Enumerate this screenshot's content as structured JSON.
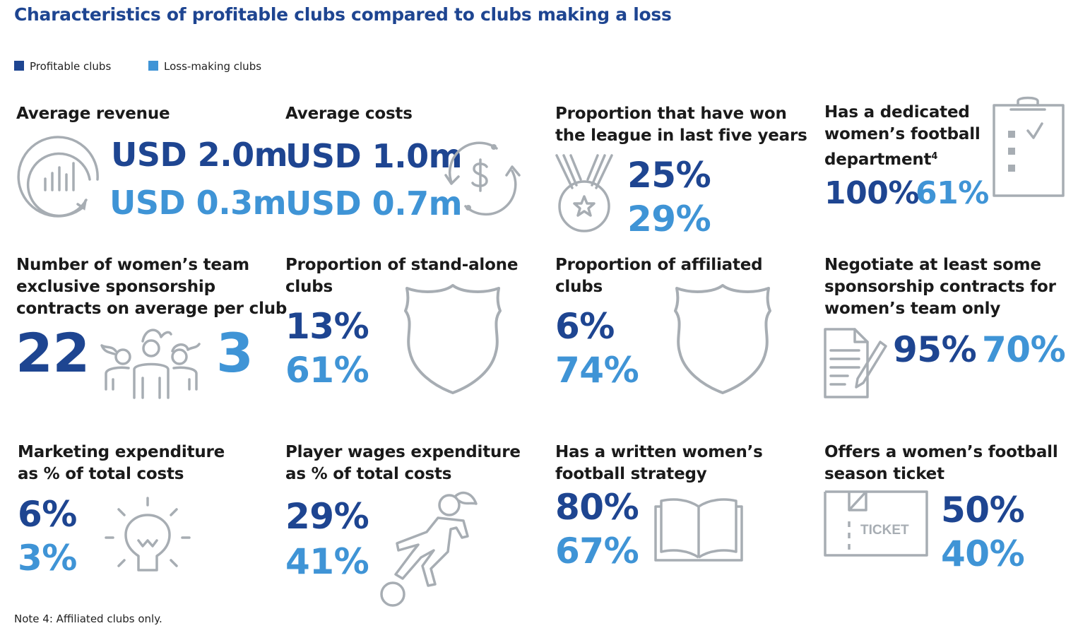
{
  "title": "Characteristics of profitable clubs compared to clubs making a loss",
  "legend": {
    "profitable": "Profitable clubs",
    "loss_making": "Loss-making clubs"
  },
  "colors": {
    "profitable": "#1e4591",
    "loss_making": "#3f94d6",
    "icon": "#a7adb3"
  },
  "cards": {
    "avg_revenue": {
      "label": "Average revenue",
      "profitable": "USD 2.0m",
      "loss": "USD 0.3m",
      "icon": "bar-chart-circle-icon"
    },
    "avg_costs": {
      "label": "Average costs",
      "profitable": "USD 1.0m",
      "loss": "USD 0.7m",
      "icon": "dollar-cycle-icon"
    },
    "won_league": {
      "label_line1": "Proportion that have won",
      "label_line2": "the league in last five years",
      "profitable": "25%",
      "loss": "29%",
      "icon": "medal-icon"
    },
    "dedicated_dept": {
      "label_line1": "Has a dedicated",
      "label_line2": "women’s football",
      "label_line3": "department",
      "footnote_ref": "4",
      "profitable": "100%",
      "loss": "61%",
      "icon": "clipboard-checklist-icon"
    },
    "sponsorship_count": {
      "label_line1": "Number of women’s team",
      "label_line2": "exclusive sponsorship",
      "label_line3": "contracts on average per club",
      "profitable": "22",
      "loss": "3",
      "icon": "team-group-icon"
    },
    "standalone": {
      "label_line1": "Proportion of stand-alone",
      "label_line2": "clubs",
      "profitable": "13%",
      "loss": "61%",
      "icon": "shield-icon"
    },
    "affiliated": {
      "label_line1": "Proportion of affiliated",
      "label_line2": "clubs",
      "profitable": "6%",
      "loss": "74%",
      "icon": "shield-icon"
    },
    "negotiate": {
      "label_line1": "Negotiate at least some",
      "label_line2": "sponsorship contracts for",
      "label_line3": "women’s team only",
      "profitable": "95%",
      "loss": "70%",
      "icon": "contract-pen-icon"
    },
    "marketing": {
      "label_line1": "Marketing expenditure",
      "label_line2": "as % of total costs",
      "profitable": "6%",
      "loss": "3%",
      "icon": "lightbulb-icon"
    },
    "wages": {
      "label_line1": "Player wages expenditure",
      "label_line2": "as % of total costs",
      "profitable": "29%",
      "loss": "41%",
      "icon": "footballer-icon"
    },
    "strategy": {
      "label_line1": "Has a written women’s",
      "label_line2": "football strategy",
      "profitable": "80%",
      "loss": "67%",
      "icon": "open-book-icon"
    },
    "season_ticket": {
      "label_line1": "Offers a women’s football",
      "label_line2": "season ticket",
      "profitable": "50%",
      "loss": "40%",
      "icon": "ticket-icon",
      "ticket_text": "TICKET"
    }
  },
  "note": "Note 4: Affiliated clubs only."
}
